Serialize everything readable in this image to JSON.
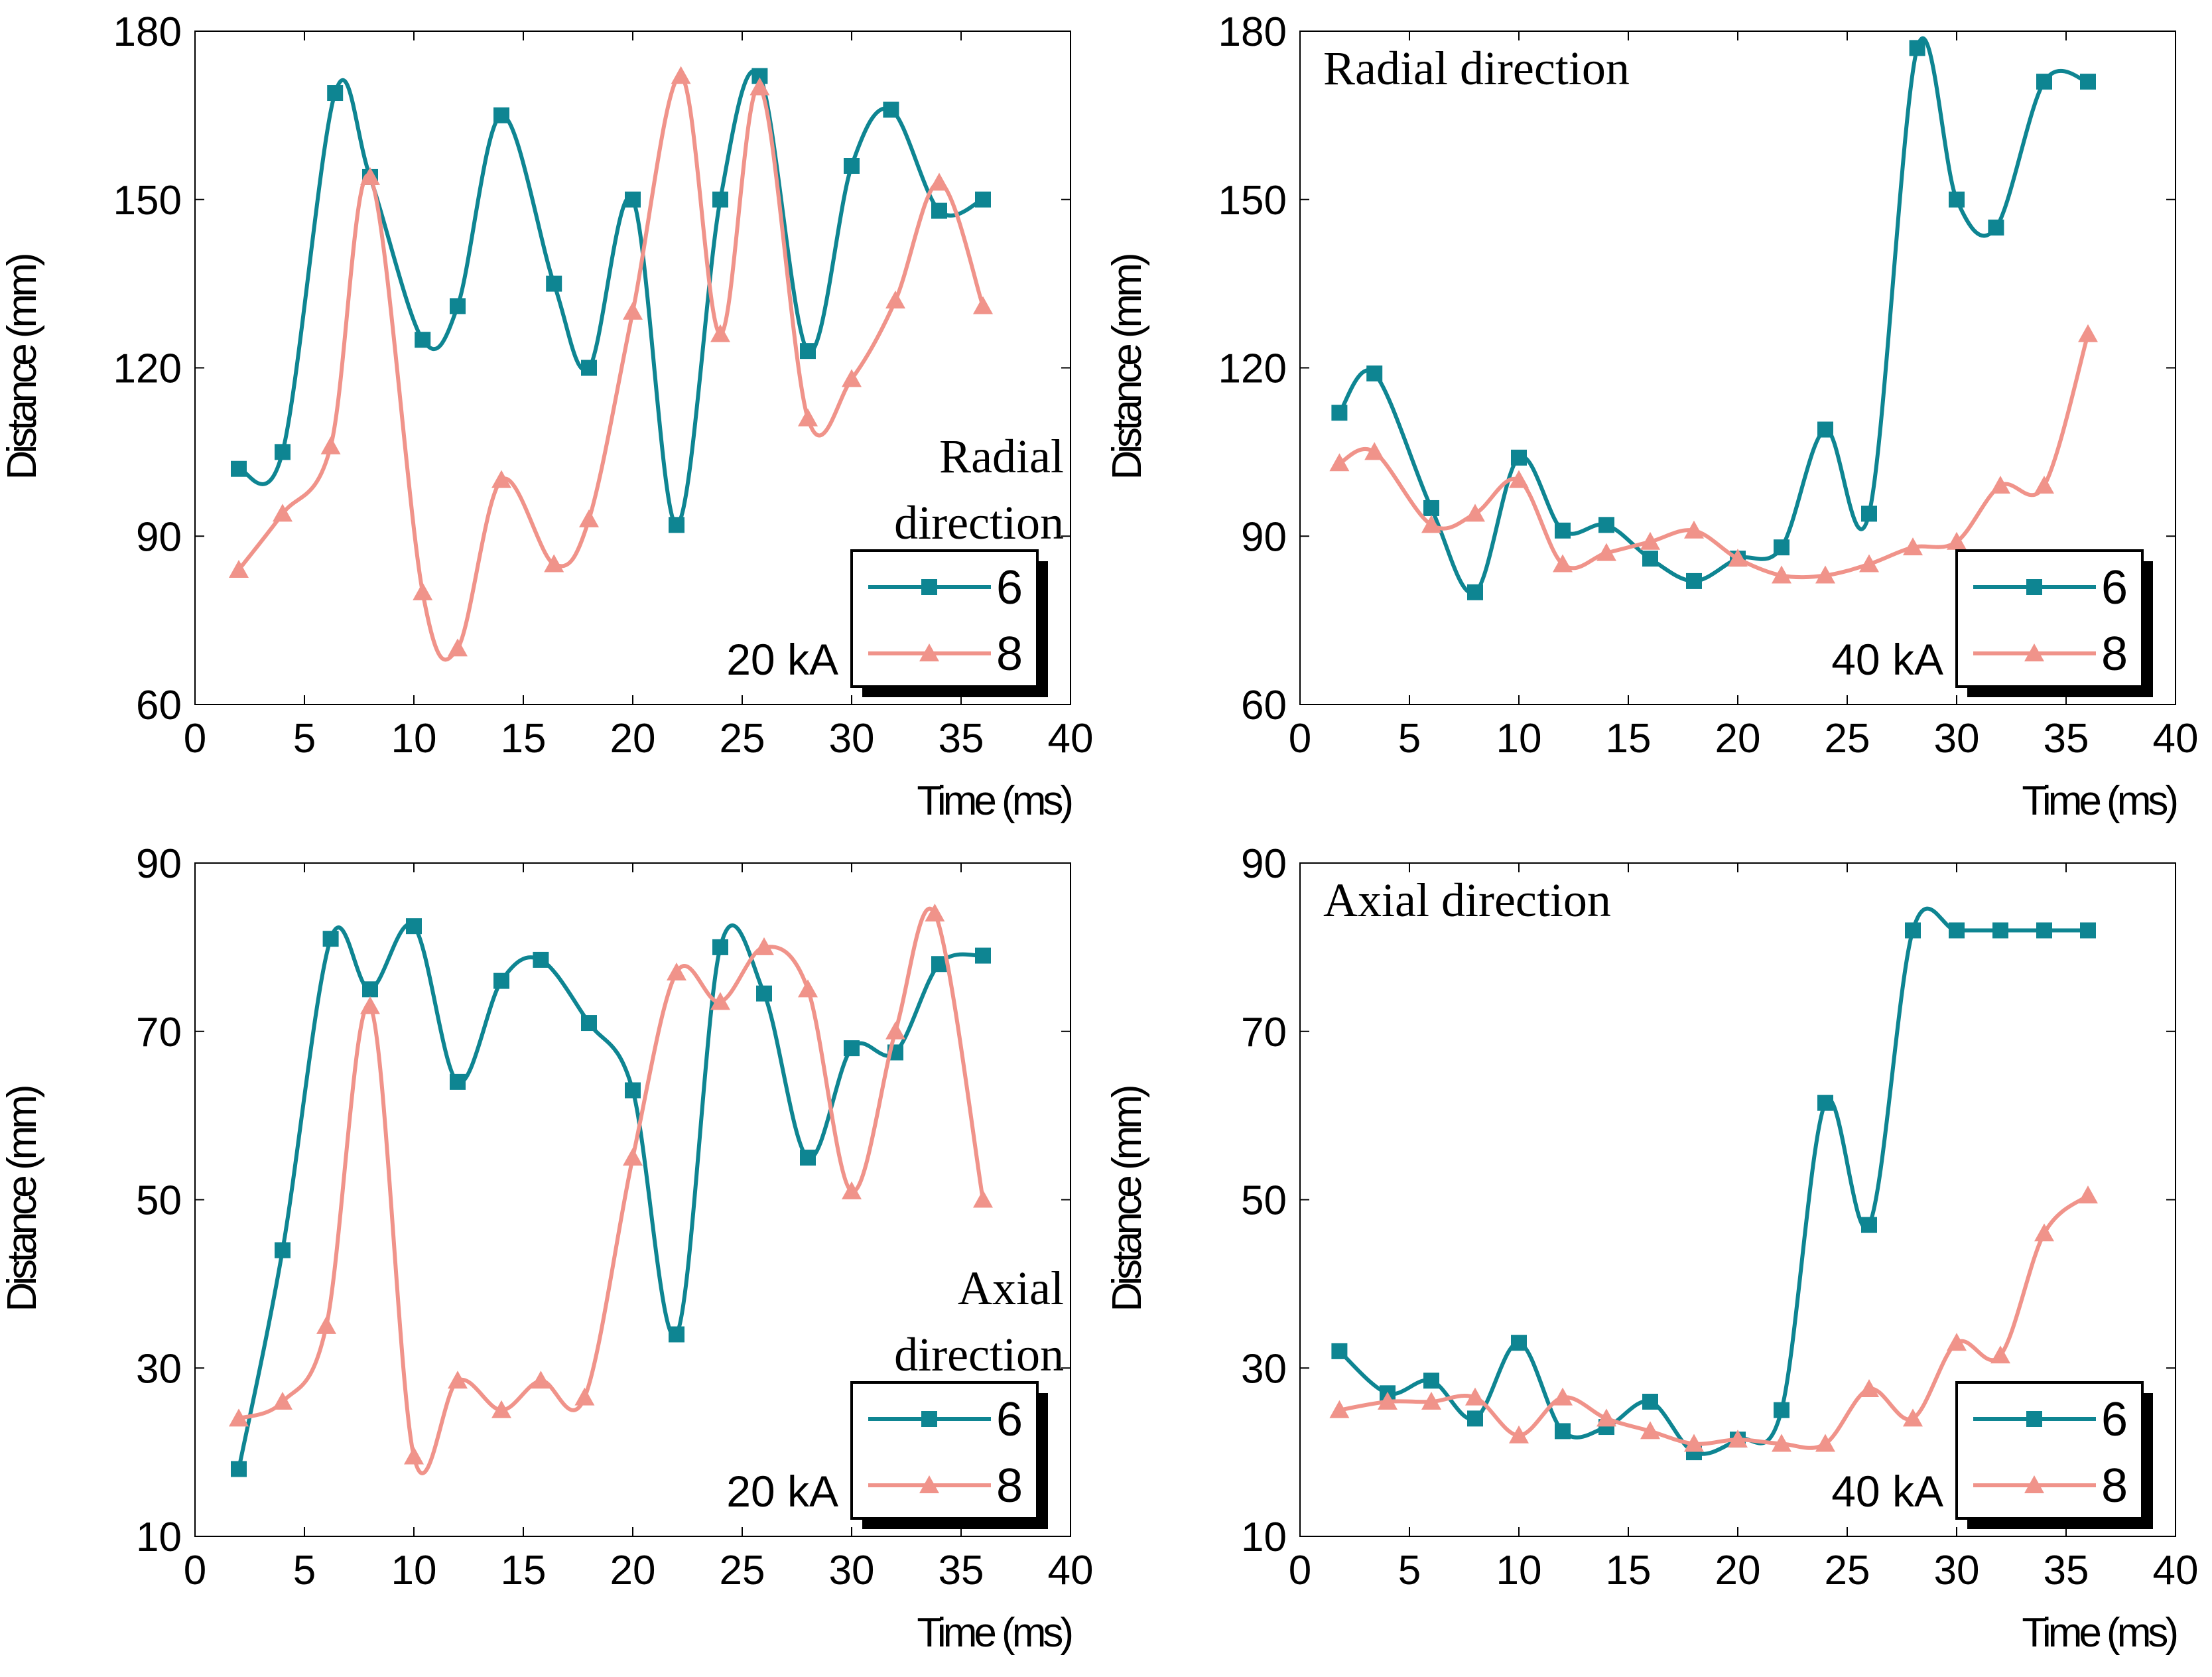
{
  "colors": {
    "series_6": "#0e8592",
    "series_8": "#f0938a",
    "axis": "#000000"
  },
  "chart_data": [
    {
      "type": "line",
      "panel": "top-left",
      "xlabel": "Time (ms)",
      "ylabel": "Distance (mm)",
      "xlim": [
        0,
        40
      ],
      "ylim": [
        60,
        180
      ],
      "xticks": [
        0,
        5,
        10,
        15,
        20,
        25,
        30,
        35,
        40
      ],
      "yticks": [
        60,
        90,
        120,
        150,
        180
      ],
      "title_lines": [
        "Radial",
        "direction"
      ],
      "title_position": "right",
      "current_label": "20 kA",
      "series": [
        {
          "name": "6",
          "marker": "square",
          "x": [
            2,
            4,
            6.4,
            8,
            10.4,
            12,
            14,
            16.4,
            18,
            20,
            22,
            24,
            25.8,
            28,
            30,
            31.8,
            34,
            36
          ],
          "y": [
            102,
            105,
            169,
            154,
            125,
            131,
            165,
            135,
            120,
            150,
            92,
            150,
            172,
            123,
            156,
            166,
            148,
            150
          ]
        },
        {
          "name": "8",
          "marker": "triangle",
          "x": [
            2,
            4,
            6.2,
            8,
            10.4,
            12,
            14,
            16.4,
            18,
            20,
            22.2,
            24,
            25.8,
            28,
            30,
            32,
            34,
            36
          ],
          "y": [
            84,
            94,
            106,
            154,
            80,
            70,
            100,
            85,
            93,
            130,
            172,
            126,
            170,
            111,
            118,
            132,
            153,
            131
          ]
        }
      ]
    },
    {
      "type": "line",
      "panel": "top-right",
      "xlabel": "Time (ms)",
      "ylabel": "Distance (mm)",
      "xlim": [
        0,
        40
      ],
      "ylim": [
        60,
        180
      ],
      "xticks": [
        0,
        5,
        10,
        15,
        20,
        25,
        30,
        35,
        40
      ],
      "yticks": [
        60,
        90,
        120,
        150,
        180
      ],
      "title_lines": [
        "Radial direction"
      ],
      "title_position": "top-left",
      "current_label": "40 kA",
      "series": [
        {
          "name": "6",
          "marker": "square",
          "x": [
            1.8,
            3.4,
            6,
            8,
            10,
            12,
            14,
            16,
            18,
            20,
            22,
            24,
            26,
            28.2,
            30,
            31.8,
            34,
            36
          ],
          "y": [
            112,
            119,
            95,
            80,
            104,
            91,
            92,
            86,
            82,
            86,
            88,
            109,
            94,
            177,
            150,
            145,
            171,
            171
          ]
        },
        {
          "name": "8",
          "marker": "triangle",
          "x": [
            1.8,
            3.4,
            6,
            8,
            10,
            12,
            14,
            16,
            18,
            20,
            22,
            24,
            26,
            28,
            30,
            32,
            34,
            36
          ],
          "y": [
            103,
            105,
            92,
            94,
            100,
            85,
            87,
            89,
            91,
            86,
            83,
            83,
            85,
            88,
            89,
            99,
            99,
            126
          ]
        }
      ]
    },
    {
      "type": "line",
      "panel": "bottom-left",
      "xlabel": "Time (ms)",
      "ylabel": "Distance (mm)",
      "xlim": [
        0,
        40
      ],
      "ylim": [
        10,
        90
      ],
      "xticks": [
        0,
        5,
        10,
        15,
        20,
        25,
        30,
        35,
        40
      ],
      "yticks": [
        10,
        30,
        50,
        70,
        90
      ],
      "title_lines": [
        "Axial",
        "direction"
      ],
      "title_position": "right",
      "current_label": "20 kA",
      "series": [
        {
          "name": "6",
          "marker": "square",
          "x": [
            2,
            4,
            6.2,
            8,
            10,
            12,
            14,
            15.8,
            18,
            20,
            22,
            24,
            26,
            28,
            30,
            32,
            34,
            36
          ],
          "y": [
            18,
            44,
            81,
            75,
            82.5,
            64,
            76,
            78.5,
            71,
            63,
            34,
            80,
            74.5,
            55,
            68,
            67.5,
            78,
            79
          ]
        },
        {
          "name": "8",
          "marker": "triangle",
          "x": [
            2,
            4,
            6,
            8,
            10,
            12,
            14,
            15.8,
            17.8,
            20,
            22,
            24,
            26,
            28,
            30,
            32,
            33.8,
            36
          ],
          "y": [
            24,
            26,
            35,
            73,
            19.5,
            28.5,
            25,
            28.5,
            26.5,
            55,
            77,
            73.5,
            80,
            75,
            51,
            70,
            84,
            50
          ]
        }
      ]
    },
    {
      "type": "line",
      "panel": "bottom-right",
      "xlabel": "Time (ms)",
      "ylabel": "Distance (mm)",
      "xlim": [
        0,
        40
      ],
      "ylim": [
        10,
        90
      ],
      "xticks": [
        0,
        5,
        10,
        15,
        20,
        25,
        30,
        35,
        40
      ],
      "yticks": [
        10,
        30,
        50,
        70,
        90
      ],
      "title_lines": [
        "Axial direction"
      ],
      "title_position": "top-left",
      "current_label": "40 kA",
      "series": [
        {
          "name": "6",
          "marker": "square",
          "x": [
            1.8,
            4,
            6,
            8,
            10,
            12,
            14,
            16,
            18,
            20,
            22,
            24,
            26,
            28,
            30,
            32,
            34,
            36
          ],
          "y": [
            32,
            27,
            28.5,
            24,
            33,
            22.5,
            23,
            26,
            20,
            21.5,
            25,
            61.5,
            47,
            82,
            82,
            82,
            82,
            82
          ]
        },
        {
          "name": "8",
          "marker": "triangle",
          "x": [
            1.8,
            4,
            6,
            8,
            10,
            12,
            14,
            16,
            18,
            20,
            22,
            24,
            26,
            28,
            30,
            32,
            34,
            36
          ],
          "y": [
            25,
            26,
            26,
            26.5,
            22,
            26.5,
            24,
            22.5,
            21,
            21.5,
            21,
            21,
            27.5,
            24,
            33,
            31.5,
            46,
            50.5
          ]
        }
      ]
    }
  ]
}
